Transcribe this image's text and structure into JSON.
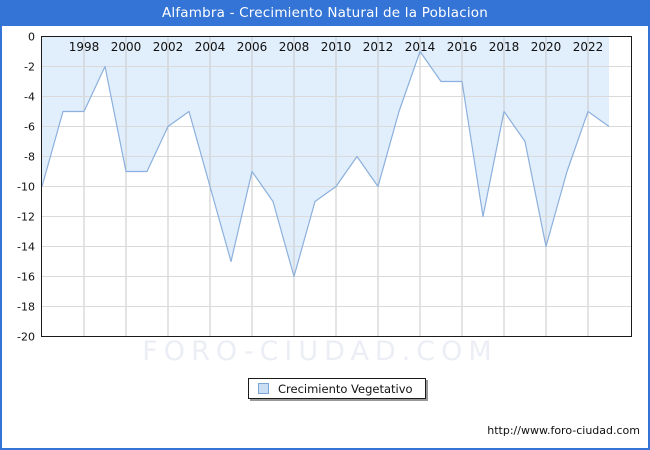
{
  "window": {
    "title": "Alfambra - Crecimiento Natural de la Poblacion"
  },
  "chart_data": {
    "type": "area",
    "title": "Alfambra - Crecimiento Natural de la Poblacion",
    "x": [
      1996,
      1997,
      1998,
      1999,
      2000,
      2001,
      2002,
      2003,
      2004,
      2005,
      2006,
      2007,
      2008,
      2009,
      2010,
      2011,
      2012,
      2013,
      2014,
      2015,
      2016,
      2017,
      2018,
      2019,
      2020,
      2021,
      2022,
      2023
    ],
    "series": [
      {
        "name": "Crecimiento Vegetativo",
        "values": [
          -10,
          -5,
          -5,
          -2,
          -9,
          -9,
          -6,
          -5,
          -10,
          -15,
          -9,
          -11,
          -16,
          -11,
          -10,
          -8,
          -10,
          -5,
          -1,
          -3,
          -3,
          -12,
          -5,
          -7,
          -14,
          -9,
          -5,
          -6
        ]
      }
    ],
    "xlabel": "",
    "ylabel": "",
    "ylim": [
      -20,
      0
    ],
    "yticks": [
      0,
      -2,
      -4,
      -6,
      -8,
      -10,
      -12,
      -14,
      -16,
      -18,
      -20
    ],
    "xticks": [
      1998,
      2000,
      2002,
      2004,
      2006,
      2008,
      2010,
      2012,
      2014,
      2016,
      2018,
      2020,
      2022
    ],
    "grid": true,
    "legend_position": "bottom-center",
    "fill_color": "#e1eefb",
    "line_color": "#8cb0dd"
  },
  "legend": {
    "items": [
      {
        "label": "Crecimiento Vegetativo",
        "swatch_fill": "#c9def2",
        "swatch_border": "#7aa6d8"
      }
    ]
  },
  "watermark": {
    "text": "FORO-CIUDAD.COM"
  },
  "footer": {
    "url": "http://www.foro-ciudad.com"
  },
  "colors": {
    "titlebar": "#3474d6",
    "page_border": "#3474d6",
    "grid_vertical": "#c8c8c8",
    "grid_horizontal": "#dadada",
    "plot_border": "#1a1a1a",
    "tick_label": "#111111",
    "watermark": "#eceef5"
  }
}
